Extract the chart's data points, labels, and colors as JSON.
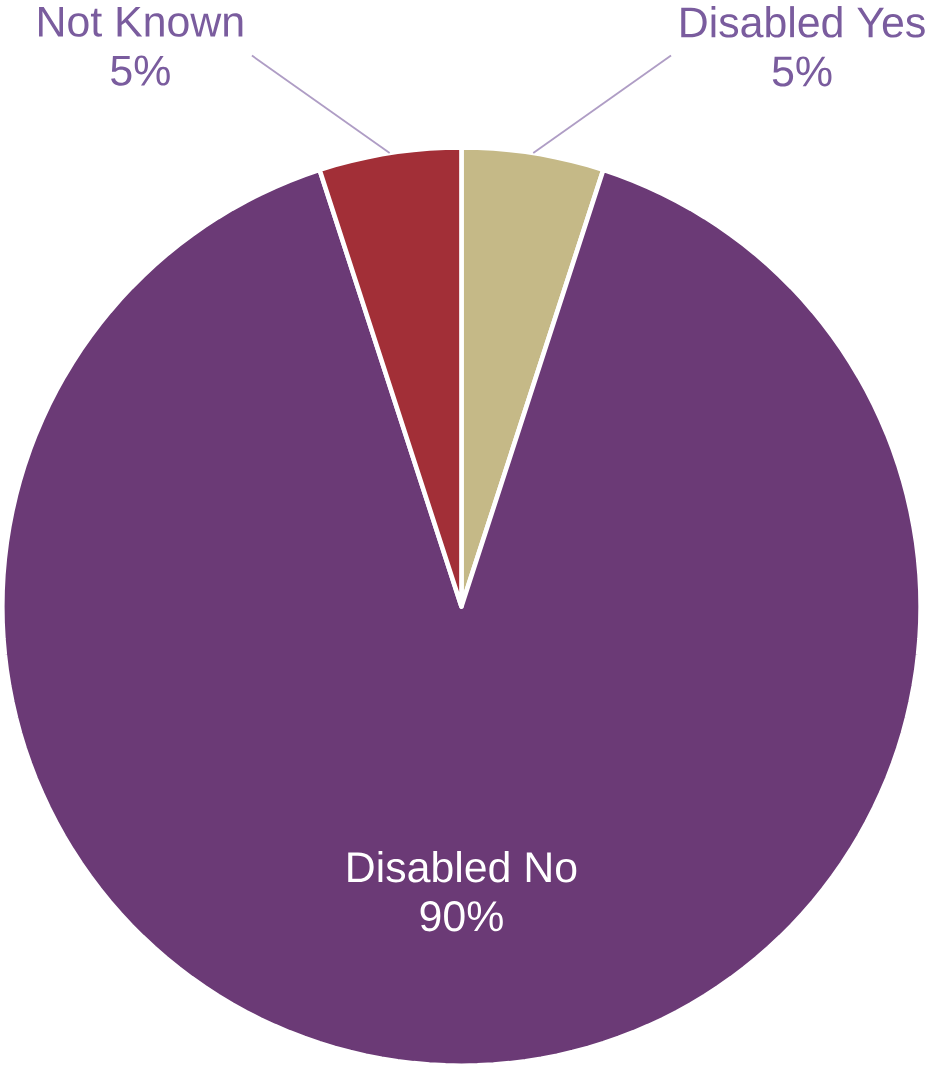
{
  "chart_data": {
    "type": "pie",
    "categories": [
      "Disabled Yes",
      "Disabled No",
      "Not Known"
    ],
    "values": [
      5,
      90,
      5
    ],
    "value_labels": [
      "5%",
      "90%",
      "5%"
    ],
    "colors": [
      "#c5b987",
      "#6b3a76",
      "#a22f37"
    ]
  }
}
